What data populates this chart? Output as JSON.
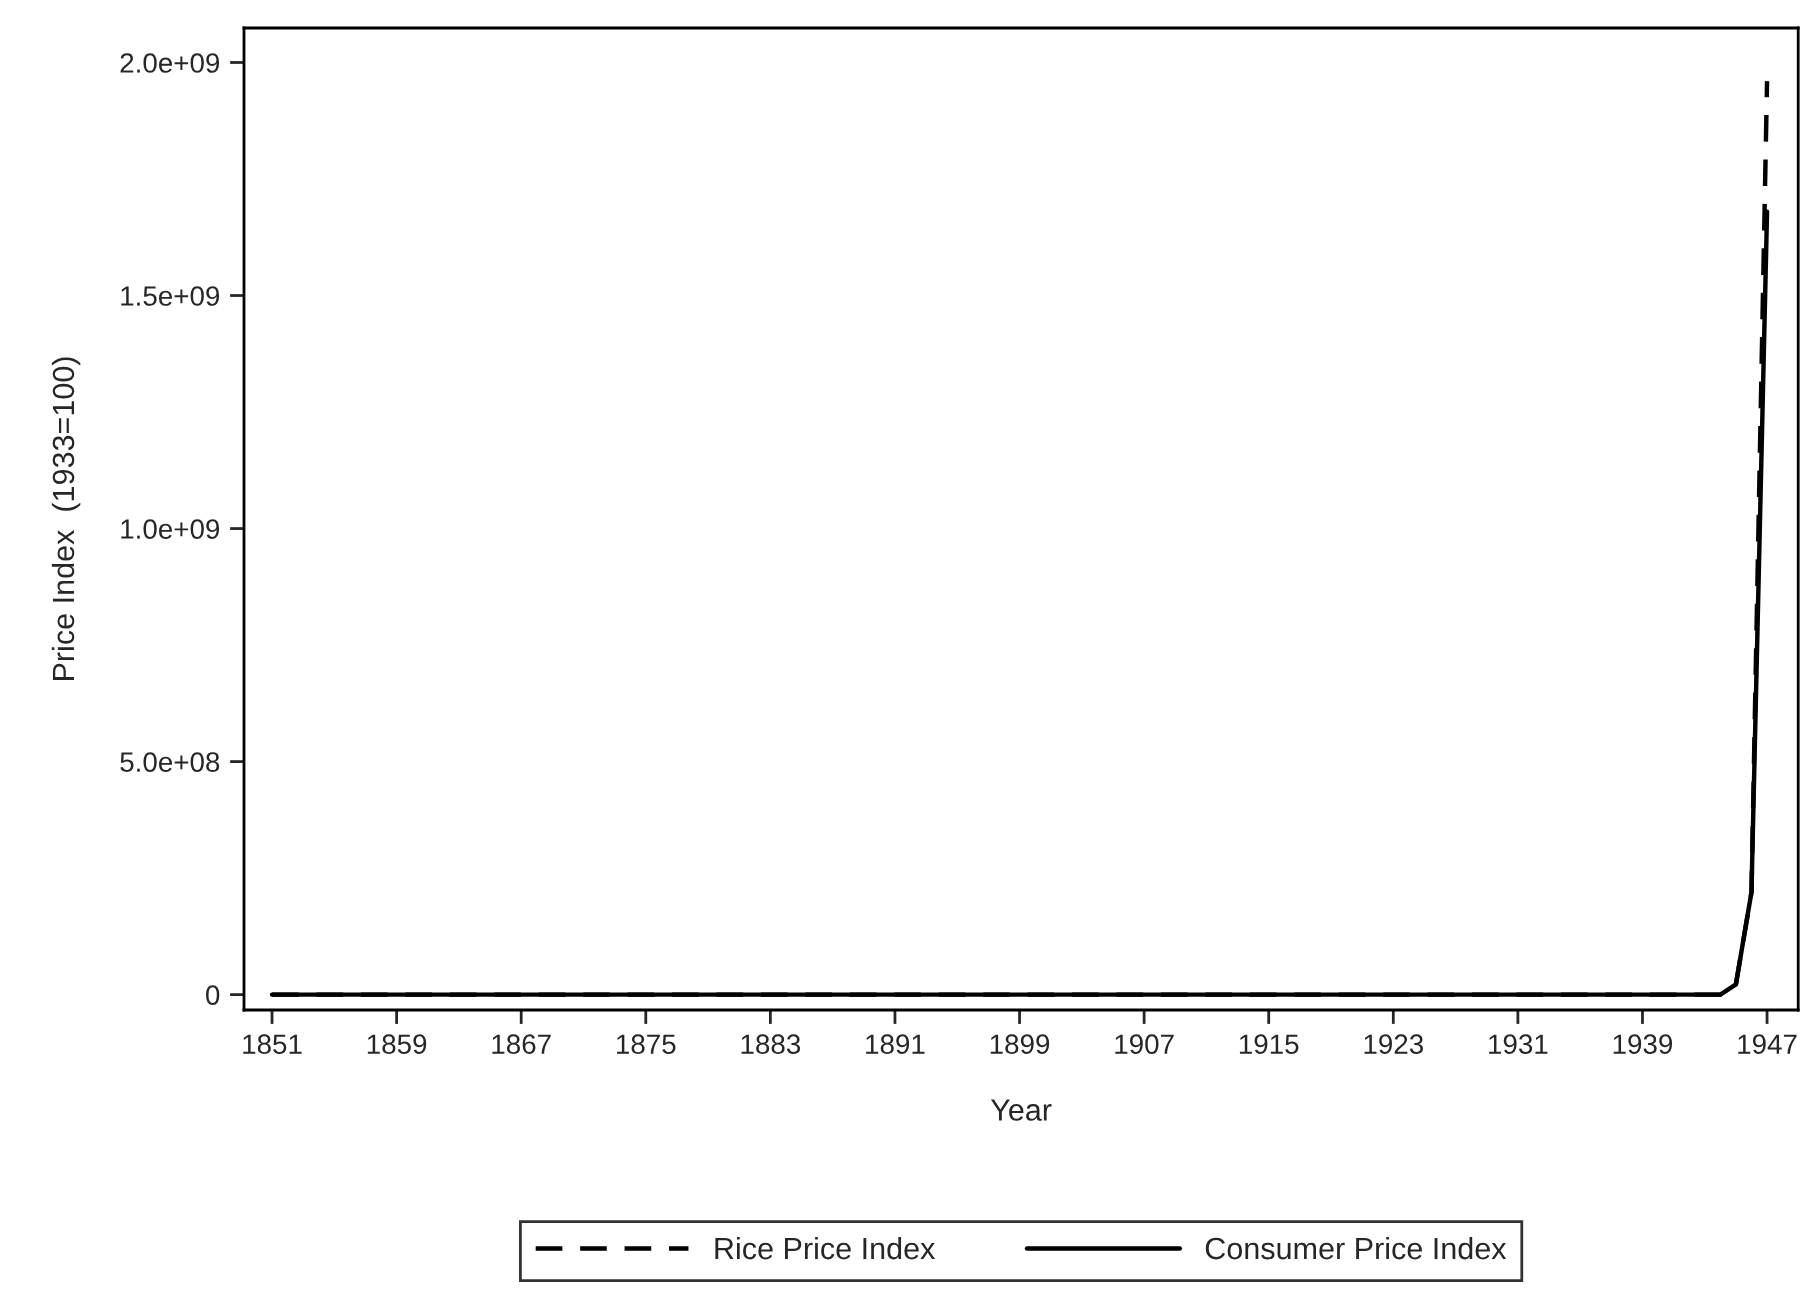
{
  "chart_data": {
    "type": "line",
    "xlabel": "Year",
    "ylabel": "Price Index  (1933=100)",
    "x": [
      1851,
      1944,
      1945,
      1946,
      1947
    ],
    "series": [
      {
        "name": "Rice Price Index",
        "color": "#000000",
        "line_style": "dashed",
        "values": [
          0,
          0,
          22000000,
          220000000,
          1960000000
        ]
      },
      {
        "name": "Consumer Price Index",
        "color": "#000000",
        "line_style": "solid",
        "values": [
          0,
          0,
          22000000,
          220000000,
          1680000000
        ]
      }
    ],
    "xlim": [
      1849.2,
      1949
    ],
    "xticks": [
      1851,
      1859,
      1867,
      1875,
      1883,
      1891,
      1899,
      1907,
      1915,
      1923,
      1931,
      1939,
      1947
    ],
    "ylim": [
      -33000000,
      2074000000
    ],
    "yticks": [
      0,
      {
        "value": 500000000,
        "label": "5.0e+08"
      },
      {
        "value": 1000000000,
        "label": "1.0e+09"
      },
      {
        "value": 1500000000,
        "label": "1.5e+09"
      },
      {
        "value": 2000000000,
        "label": "2.0e+09"
      }
    ],
    "grid": false,
    "legend": "bottom",
    "marker": "none"
  }
}
